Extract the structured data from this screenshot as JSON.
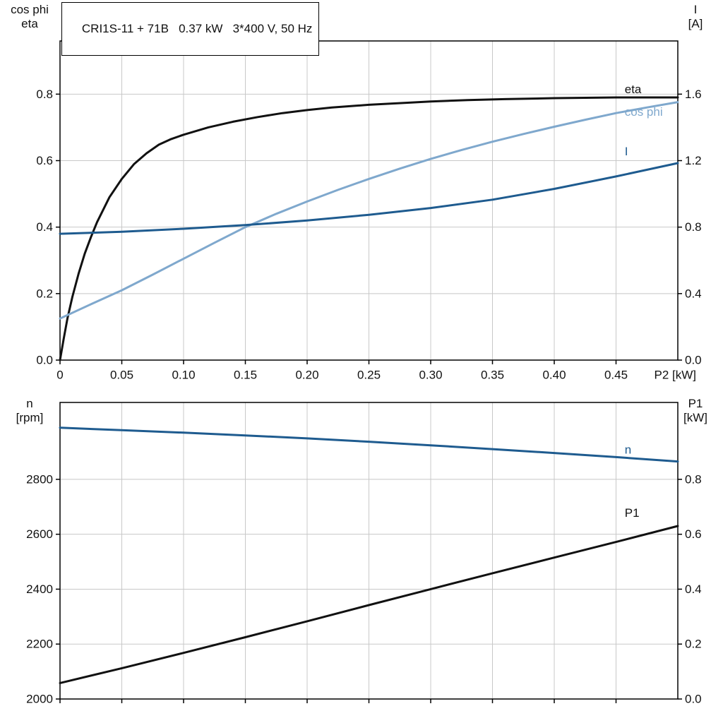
{
  "colors": {
    "black": "#111111",
    "dark_blue": "#1e5b8f",
    "light_blue": "#7fa8cd",
    "grid": "#c8c8c8",
    "frame": "#000000"
  },
  "chart_data": [
    {
      "type": "line",
      "title": "CRI1S-11 + 71B   0.37 kW   3*400 V, 50 Hz",
      "x_axis": {
        "label": "P2 [kW]",
        "range": [
          0,
          0.5
        ],
        "ticks": [
          0,
          0.05,
          0.1,
          0.15,
          0.2,
          0.25,
          0.3,
          0.35,
          0.4,
          0.45
        ],
        "tick_labels": [
          "0",
          "0.05",
          "0.10",
          "0.15",
          "0.20",
          "0.25",
          "0.30",
          "0.35",
          "0.40",
          "0.45"
        ],
        "grid": true
      },
      "left_axis": {
        "title_lines": [
          "cos phi",
          "eta"
        ],
        "range": [
          0,
          0.96
        ],
        "ticks": [
          0,
          0.2,
          0.4,
          0.6,
          0.8
        ],
        "tick_labels": [
          "0.0",
          "0.2",
          "0.4",
          "0.6",
          "0.8"
        ]
      },
      "right_axis": {
        "title_lines": [
          "I",
          "[A]"
        ],
        "range": [
          0,
          1.92
        ],
        "ticks": [
          0,
          0.4,
          0.8,
          1.2,
          1.6
        ],
        "tick_labels": [
          "0.0",
          "0.4",
          "0.8",
          "1.2",
          "1.6"
        ]
      },
      "series": [
        {
          "name": "eta",
          "label": "eta",
          "axis": "left",
          "color_key": "black",
          "label_pos": {
            "x": 0.457,
            "y": 0.815
          },
          "points": [
            [
              0,
              0
            ],
            [
              0.003,
              0.065
            ],
            [
              0.006,
              0.125
            ],
            [
              0.01,
              0.19
            ],
            [
              0.015,
              0.26
            ],
            [
              0.02,
              0.32
            ],
            [
              0.025,
              0.37
            ],
            [
              0.03,
              0.415
            ],
            [
              0.04,
              0.49
            ],
            [
              0.05,
              0.545
            ],
            [
              0.06,
              0.59
            ],
            [
              0.07,
              0.622
            ],
            [
              0.08,
              0.648
            ],
            [
              0.09,
              0.665
            ],
            [
              0.1,
              0.678
            ],
            [
              0.12,
              0.7
            ],
            [
              0.14,
              0.717
            ],
            [
              0.16,
              0.731
            ],
            [
              0.18,
              0.743
            ],
            [
              0.2,
              0.752
            ],
            [
              0.22,
              0.76
            ],
            [
              0.25,
              0.768
            ],
            [
              0.28,
              0.774
            ],
            [
              0.3,
              0.778
            ],
            [
              0.33,
              0.782
            ],
            [
              0.36,
              0.785
            ],
            [
              0.4,
              0.788
            ],
            [
              0.45,
              0.79
            ],
            [
              0.5,
              0.79
            ]
          ]
        },
        {
          "name": "cos-phi",
          "label": "cos phi",
          "axis": "left",
          "color_key": "light_blue",
          "label_pos": {
            "x": 0.457,
            "y": 0.747
          },
          "points": [
            [
              0,
              0.125
            ],
            [
              0.025,
              0.168
            ],
            [
              0.05,
              0.21
            ],
            [
              0.075,
              0.257
            ],
            [
              0.1,
              0.305
            ],
            [
              0.125,
              0.353
            ],
            [
              0.15,
              0.4
            ],
            [
              0.175,
              0.44
            ],
            [
              0.2,
              0.477
            ],
            [
              0.225,
              0.512
            ],
            [
              0.25,
              0.545
            ],
            [
              0.275,
              0.576
            ],
            [
              0.3,
              0.605
            ],
            [
              0.325,
              0.632
            ],
            [
              0.35,
              0.657
            ],
            [
              0.375,
              0.68
            ],
            [
              0.4,
              0.702
            ],
            [
              0.425,
              0.723
            ],
            [
              0.45,
              0.743
            ],
            [
              0.475,
              0.76
            ],
            [
              0.5,
              0.776
            ]
          ]
        },
        {
          "name": "current",
          "label": "I",
          "axis": "right",
          "color_key": "dark_blue",
          "label_pos": {
            "x": 0.457,
            "y": 1.255
          },
          "points": [
            [
              0,
              0.76
            ],
            [
              0.05,
              0.772
            ],
            [
              0.1,
              0.79
            ],
            [
              0.15,
              0.812
            ],
            [
              0.2,
              0.84
            ],
            [
              0.25,
              0.874
            ],
            [
              0.3,
              0.915
            ],
            [
              0.35,
              0.965
            ],
            [
              0.4,
              1.03
            ],
            [
              0.45,
              1.105
            ],
            [
              0.5,
              1.185
            ]
          ]
        }
      ]
    },
    {
      "type": "line",
      "title": "",
      "x_axis": {
        "label": "",
        "range": [
          0,
          0.5
        ],
        "ticks": [
          0,
          0.05,
          0.1,
          0.15,
          0.2,
          0.25,
          0.3,
          0.35,
          0.4,
          0.45
        ],
        "tick_labels": [],
        "grid": true
      },
      "left_axis": {
        "title_lines": [
          "n",
          "[rpm]"
        ],
        "range": [
          2000,
          3080
        ],
        "ticks": [
          2000,
          2200,
          2400,
          2600,
          2800
        ],
        "tick_labels": [
          "2000",
          "2200",
          "2400",
          "2600",
          "2800"
        ]
      },
      "right_axis": {
        "title_lines": [
          "P1",
          "[kW]"
        ],
        "range": [
          0,
          1.08
        ],
        "ticks": [
          0,
          0.2,
          0.4,
          0.6,
          0.8
        ],
        "tick_labels": [
          "0.0",
          "0.2",
          "0.4",
          "0.6",
          "0.8"
        ]
      },
      "series": [
        {
          "name": "speed",
          "label": "n",
          "axis": "left",
          "color_key": "dark_blue",
          "label_pos": {
            "x": 0.457,
            "y": 2908
          },
          "points": [
            [
              0,
              2988
            ],
            [
              0.05,
              2979
            ],
            [
              0.1,
              2970
            ],
            [
              0.15,
              2960
            ],
            [
              0.2,
              2949
            ],
            [
              0.25,
              2937
            ],
            [
              0.3,
              2924
            ],
            [
              0.35,
              2910
            ],
            [
              0.4,
              2896
            ],
            [
              0.45,
              2881
            ],
            [
              0.5,
              2865
            ]
          ]
        },
        {
          "name": "p1",
          "label": "P1",
          "axis": "right",
          "color_key": "black",
          "label_pos": {
            "x": 0.457,
            "y": 0.678
          },
          "points": [
            [
              0,
              0.058
            ],
            [
              0.05,
              0.112
            ],
            [
              0.1,
              0.168
            ],
            [
              0.15,
              0.225
            ],
            [
              0.2,
              0.283
            ],
            [
              0.25,
              0.342
            ],
            [
              0.3,
              0.4
            ],
            [
              0.35,
              0.458
            ],
            [
              0.4,
              0.515
            ],
            [
              0.45,
              0.572
            ],
            [
              0.5,
              0.63
            ]
          ]
        }
      ]
    }
  ]
}
